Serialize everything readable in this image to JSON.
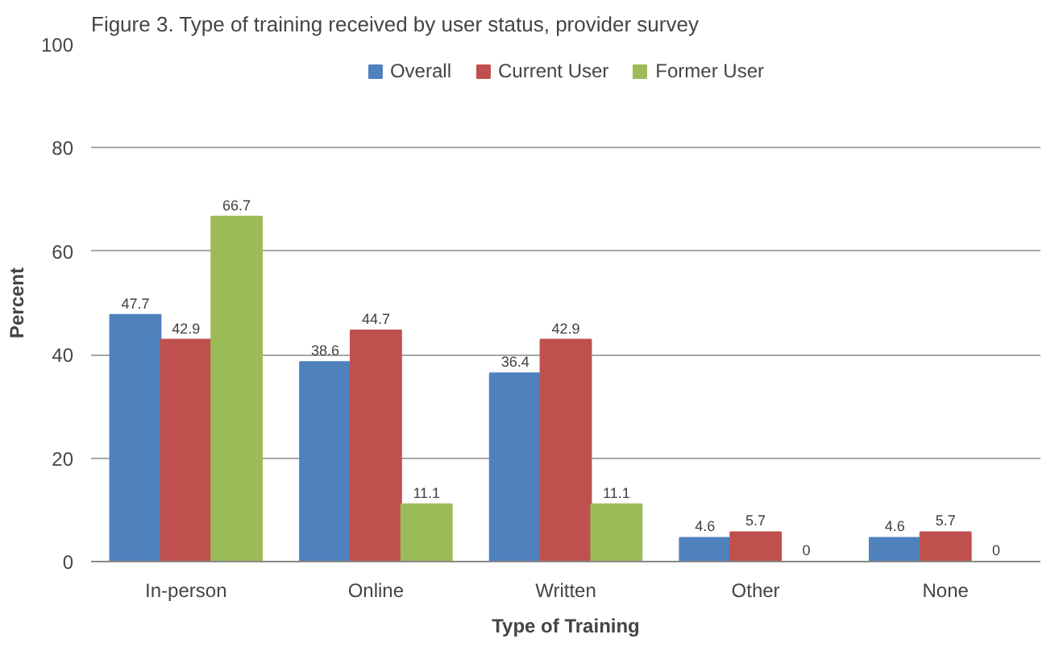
{
  "chart_data": {
    "type": "bar",
    "title": "Figure 3. Type of training received by user status, provider survey",
    "xlabel": "Type of Training",
    "ylabel": "Percent",
    "categories": [
      "In-person",
      "Online",
      "Written",
      "Other",
      "None"
    ],
    "series": [
      {
        "name": "Overall",
        "color": "#4f81bd",
        "values": [
          47.7,
          38.6,
          36.4,
          4.6,
          4.6
        ]
      },
      {
        "name": "Current User",
        "color": "#c0504d",
        "values": [
          42.9,
          44.7,
          42.9,
          5.7,
          5.7
        ]
      },
      {
        "name": "Former User",
        "color": "#9bbb59",
        "values": [
          66.7,
          11.1,
          11.1,
          0,
          0
        ]
      }
    ],
    "ylim": [
      0,
      100
    ],
    "yticks": [
      0,
      20,
      40,
      60,
      80,
      100
    ],
    "grid": "y",
    "legend": "top",
    "data_labels": true
  }
}
